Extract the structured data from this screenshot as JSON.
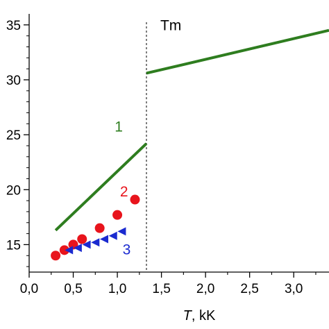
{
  "chart_data": {
    "type": "line",
    "title": "",
    "xlabel_italic": "T",
    "xlabel_rest": ", kK",
    "ylabel": "",
    "xlim": [
      0.0,
      3.4
    ],
    "ylim": [
      12.5,
      36.0
    ],
    "x_ticks": [
      0.0,
      0.5,
      1.0,
      1.5,
      2.0,
      2.5,
      3.0
    ],
    "x_tick_labels": [
      "0,0",
      "0,5",
      "1,0",
      "1,5",
      "2,0",
      "2,5",
      "3,0"
    ],
    "y_ticks": [
      15,
      20,
      25,
      30,
      35
    ],
    "y_tick_labels": [
      "15",
      "20",
      "25",
      "30",
      "35"
    ],
    "grid": false,
    "melting_line": {
      "x": 1.33,
      "label": "Tm"
    },
    "series": [
      {
        "name": "1",
        "kind": "line",
        "color": "#2e7d1f",
        "segments": [
          [
            [
              0.3,
              16.3
            ],
            [
              1.33,
              24.2
            ]
          ],
          [
            [
              1.33,
              30.6
            ],
            [
              3.4,
              34.5
            ]
          ]
        ]
      },
      {
        "name": "2",
        "kind": "circle",
        "color": "#e8141c",
        "points": [
          [
            0.3,
            14.0
          ],
          [
            0.4,
            14.5
          ],
          [
            0.5,
            15.0
          ],
          [
            0.6,
            15.5
          ],
          [
            0.8,
            16.5
          ],
          [
            1.0,
            17.7
          ],
          [
            1.2,
            19.1
          ]
        ]
      },
      {
        "name": "3",
        "kind": "triangle",
        "color": "#1a2ad0",
        "points": [
          [
            0.45,
            14.5
          ],
          [
            0.55,
            14.7
          ],
          [
            0.65,
            15.0
          ],
          [
            0.75,
            15.2
          ],
          [
            0.85,
            15.5
          ],
          [
            0.95,
            15.8
          ],
          [
            1.05,
            16.2
          ]
        ]
      }
    ],
    "series_labels": [
      {
        "text": "1",
        "x": 0.97,
        "y": 25.3,
        "color": "#2e7d1f"
      },
      {
        "text": "2",
        "x": 1.03,
        "y": 19.4,
        "color": "#e8141c"
      },
      {
        "text": "3",
        "x": 1.06,
        "y": 14.1,
        "color": "#1a2ad0"
      }
    ]
  }
}
